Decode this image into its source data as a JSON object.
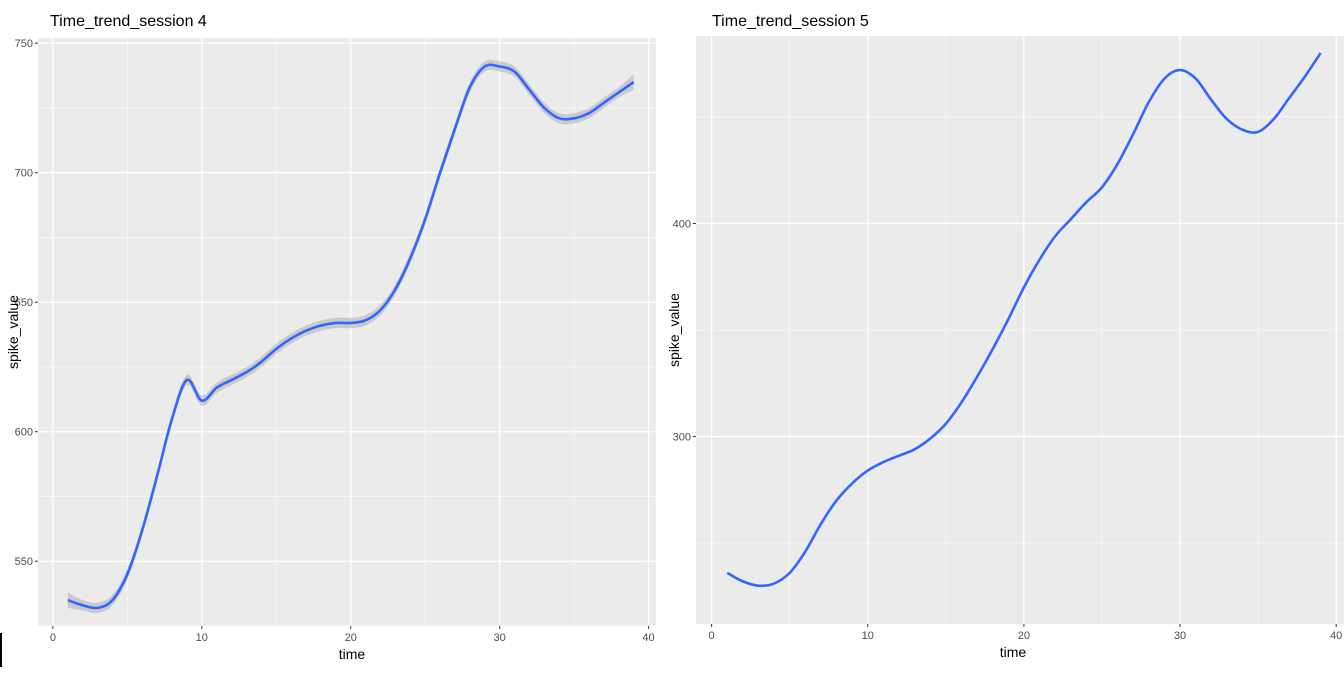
{
  "chart_data": [
    {
      "type": "line",
      "title": "Time_trend_session 4",
      "xlabel": "time",
      "ylabel": "spike_value",
      "xlim": [
        -1,
        40.5
      ],
      "ylim": [
        525,
        752
      ],
      "xticks": [
        0,
        10,
        20,
        30,
        40
      ],
      "xtick_labels": [
        "0",
        "10",
        "20",
        "30",
        "40"
      ],
      "yticks": [
        550,
        600,
        650,
        700,
        750
      ],
      "ytick_labels": [
        "550",
        "600",
        "650",
        "700",
        "750"
      ],
      "grid": true,
      "confidence_band": true,
      "line_color": "#3366ff",
      "band_color": "#999999",
      "panel_bg": "#ebebeb",
      "series": [
        {
          "x": [
            1,
            2,
            3,
            4,
            5,
            6,
            7,
            8,
            9,
            10,
            11,
            12,
            13,
            14,
            15,
            16,
            17,
            18,
            19,
            20,
            21,
            22,
            23,
            24,
            25,
            26,
            27,
            28,
            29,
            30,
            31,
            32,
            33,
            34,
            35,
            36,
            37,
            38,
            39
          ],
          "y": [
            535,
            533,
            532,
            535,
            545,
            562,
            583,
            605,
            620,
            612,
            617,
            620,
            623,
            627,
            632,
            636,
            639,
            641,
            642,
            642,
            643,
            647,
            655,
            667,
            682,
            700,
            717,
            733,
            741,
            741,
            739,
            732,
            725,
            721,
            721,
            723,
            727,
            731,
            735
          ],
          "band": [
            3,
            2,
            2,
            2,
            2,
            2,
            2,
            2,
            2,
            2,
            2,
            2,
            2,
            2,
            2,
            2,
            2,
            2,
            2,
            2,
            2,
            2,
            2,
            2,
            2,
            2,
            2,
            2,
            2,
            2,
            2,
            2,
            2,
            2,
            2,
            2,
            2,
            2,
            3
          ]
        }
      ]
    },
    {
      "type": "line",
      "title": "Time_trend_session 5",
      "xlabel": "time",
      "ylabel": "spike_value",
      "xlim": [
        -1,
        40.5
      ],
      "ylim": [
        212,
        488
      ],
      "xticks": [
        0,
        10,
        20,
        30,
        40
      ],
      "xtick_labels": [
        "0",
        "10",
        "20",
        "30",
        "40"
      ],
      "yticks": [
        300,
        400
      ],
      "ytick_labels": [
        "300",
        "400"
      ],
      "grid": true,
      "confidence_band": false,
      "line_color": "#3366ff",
      "panel_bg": "#ebebeb",
      "series": [
        {
          "x": [
            1,
            2,
            3,
            4,
            5,
            6,
            7,
            8,
            9,
            10,
            11,
            12,
            13,
            14,
            15,
            16,
            17,
            18,
            19,
            20,
            21,
            22,
            23,
            24,
            25,
            26,
            27,
            28,
            29,
            30,
            31,
            32,
            33,
            34,
            35,
            36,
            37,
            38,
            39
          ],
          "y": [
            236,
            232,
            230,
            231,
            236,
            246,
            259,
            270,
            278,
            284,
            288,
            291,
            294,
            299,
            306,
            316,
            328,
            341,
            355,
            370,
            383,
            394,
            402,
            410,
            417,
            428,
            442,
            457,
            468,
            472,
            468,
            458,
            449,
            444,
            443,
            449,
            459,
            469,
            480
          ]
        }
      ]
    }
  ]
}
